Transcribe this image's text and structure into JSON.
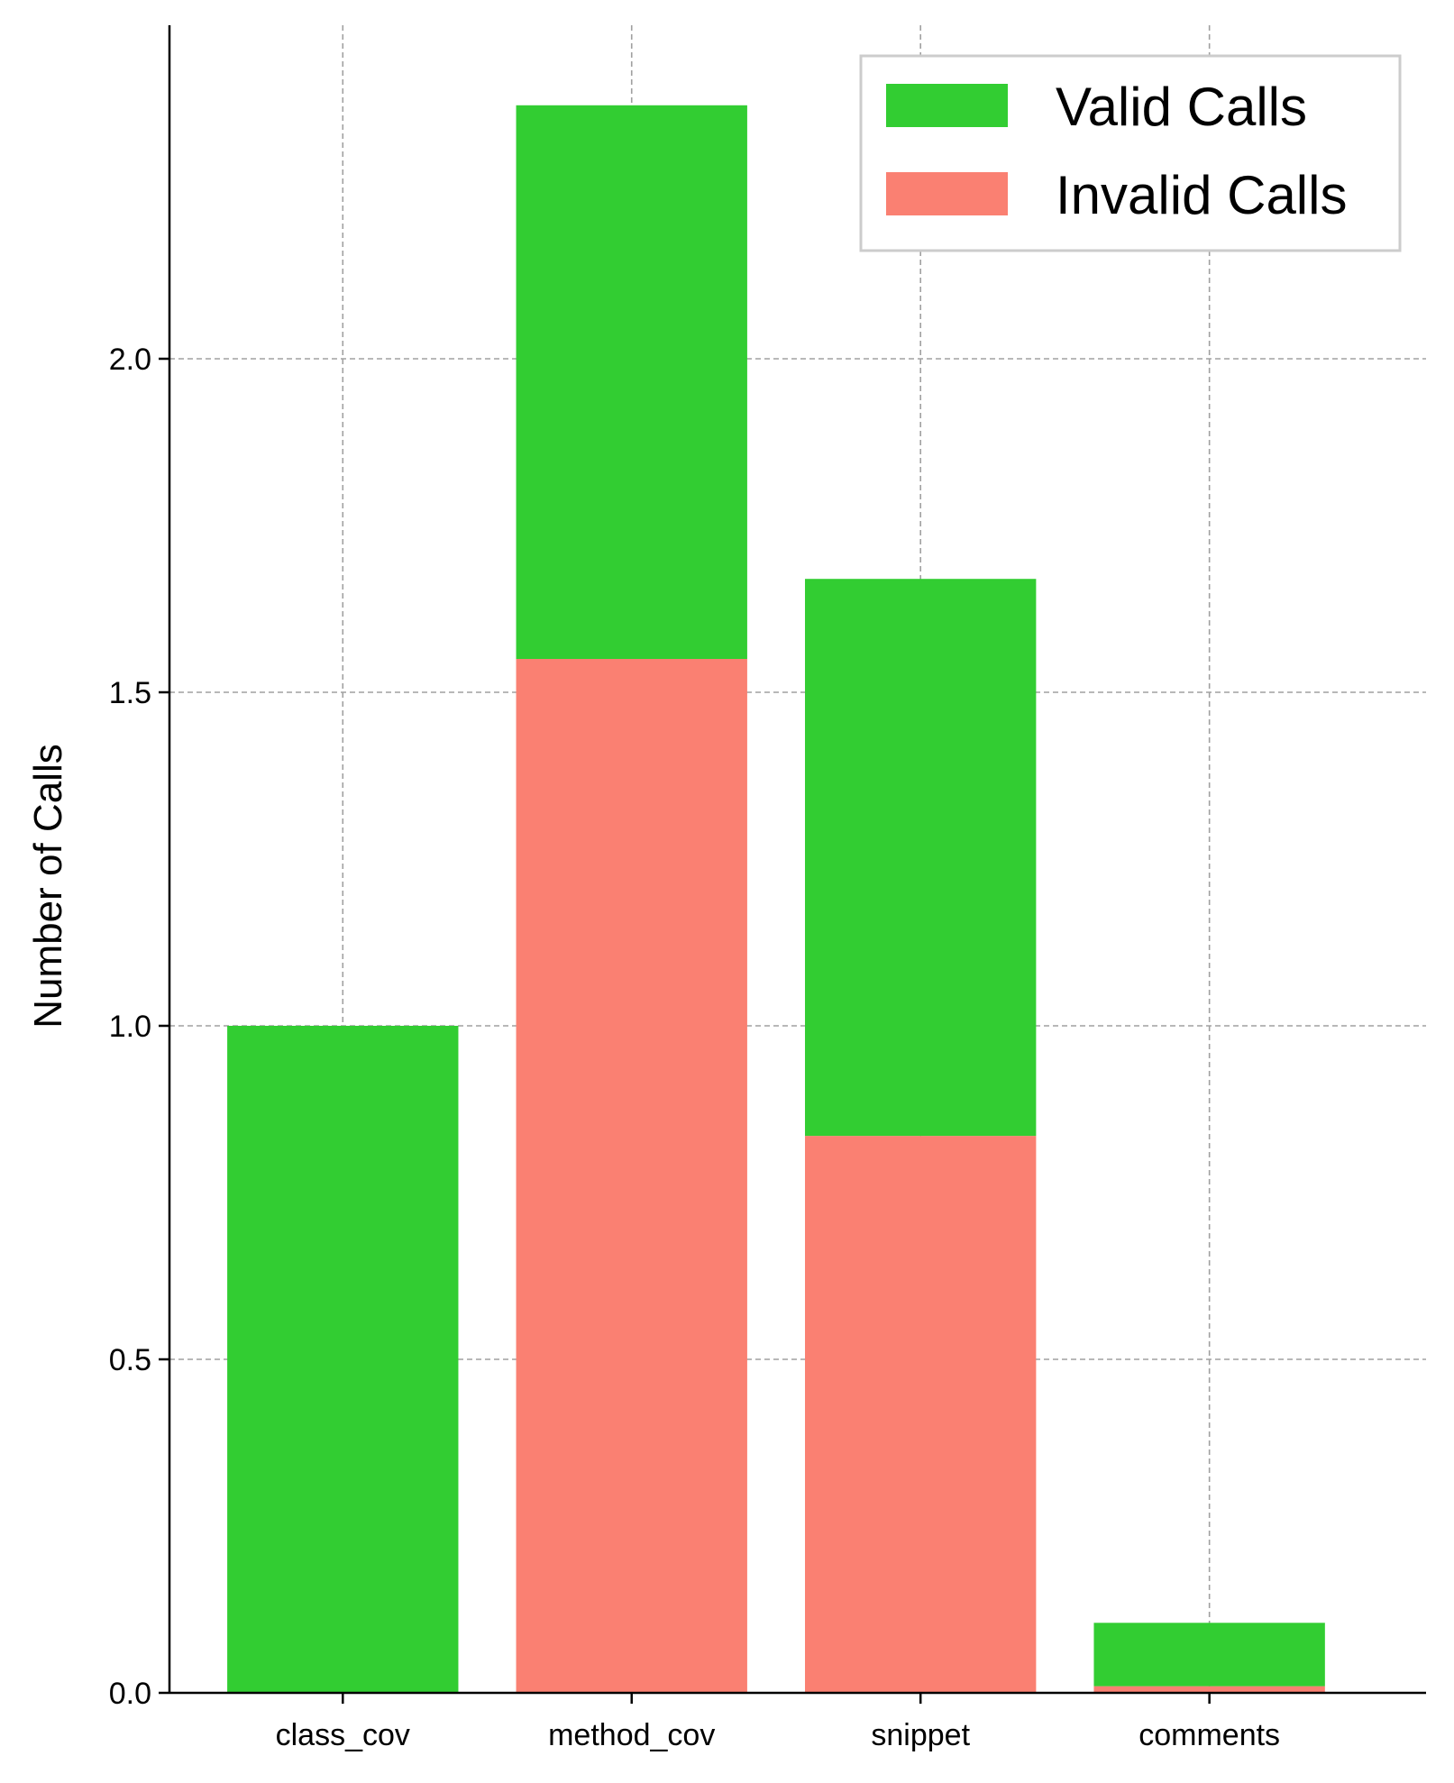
{
  "chart_data": {
    "type": "bar",
    "stacked": true,
    "categories": [
      "class_cov",
      "method_cov",
      "snippet",
      "comments"
    ],
    "series": [
      {
        "name": "Invalid Calls",
        "values": [
          0.0,
          1.55,
          0.835,
          0.01
        ],
        "color": "#fa8072"
      },
      {
        "name": "Valid Calls",
        "values": [
          1.0,
          0.83,
          0.835,
          0.095
        ],
        "color": "#32cd32"
      }
    ],
    "legend_order": [
      "Valid Calls",
      "Invalid Calls"
    ],
    "ylabel": "Number of Calls",
    "xlabel": "",
    "ylim": [
      0,
      2.5
    ],
    "yticks": [
      0.0,
      0.5,
      1.0,
      1.5,
      2.0
    ],
    "ytick_labels": [
      "0.0",
      "0.5",
      "1.0",
      "1.5",
      "2.0"
    ],
    "grid": true,
    "legend_position": "top-right"
  }
}
